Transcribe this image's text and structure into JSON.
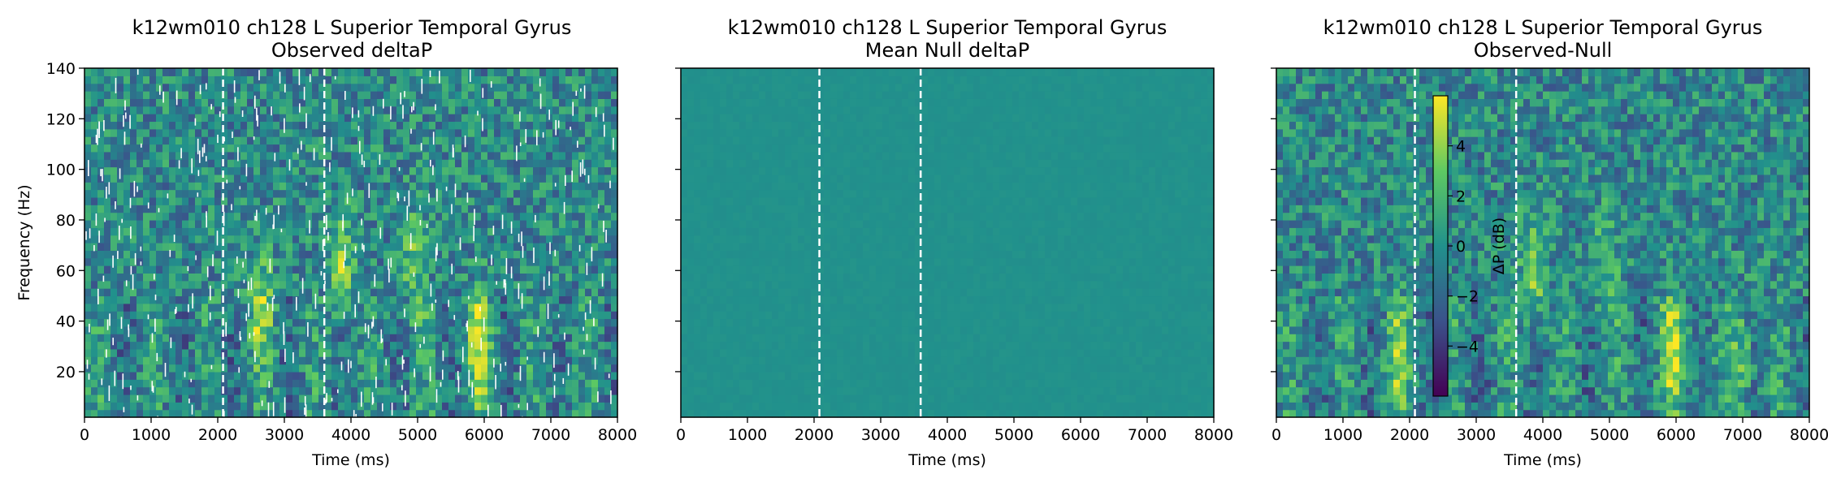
{
  "figure": {
    "colors": {
      "colormap": [
        "#440154",
        "#3b528b",
        "#21918c",
        "#5ec962",
        "#fde725"
      ],
      "marker_lines": "#ffffff",
      "axes": "#000000"
    },
    "colorbar": {
      "label": "ΔP (dB)",
      "range": [
        -6,
        6
      ],
      "ticks": [
        4,
        2,
        0,
        -2,
        -4
      ],
      "tick_labels": [
        "4",
        "2",
        "0",
        "−2",
        "−4"
      ]
    }
  },
  "chart_data": [
    {
      "type": "heatmap",
      "title": "k12wm010 ch128 L Superior Temporal Gyrus",
      "subtitle": "Observed deltaP",
      "xlabel": "Time (ms)",
      "ylabel": "Frequency (Hz)",
      "xlim": [
        0,
        8000
      ],
      "ylim": [
        2,
        140
      ],
      "xticks": [
        0,
        1000,
        2000,
        3000,
        4000,
        5000,
        6000,
        7000,
        8000
      ],
      "yticks": [
        20,
        40,
        60,
        80,
        100,
        120,
        140
      ],
      "grid": false,
      "event_lines_ms": [
        2080,
        3600
      ],
      "value_range": [
        -6,
        6
      ],
      "hotspots": [
        {
          "time_ms": 2650,
          "freq_hz": 45,
          "value": 4
        },
        {
          "time_ms": 3850,
          "freq_hz": 62,
          "value": 4
        },
        {
          "time_ms": 4950,
          "freq_hz": 63,
          "value": 3
        },
        {
          "time_ms": 5950,
          "freq_hz": 30,
          "value": 5
        }
      ]
    },
    {
      "type": "heatmap",
      "title": "k12wm010 ch128 L Superior Temporal Gyrus",
      "subtitle": "Mean Null deltaP",
      "xlabel": "Time (ms)",
      "ylabel": "",
      "xlim": [
        0,
        8000
      ],
      "ylim": [
        2,
        140
      ],
      "xticks": [
        0,
        1000,
        2000,
        3000,
        4000,
        5000,
        6000,
        7000,
        8000
      ],
      "yticks": [
        20,
        40,
        60,
        80,
        100,
        120,
        140
      ],
      "grid": false,
      "event_lines_ms": [
        2080,
        3600
      ],
      "value_range": [
        -6,
        6
      ],
      "hotspots": []
    },
    {
      "type": "heatmap",
      "title": "k12wm010 ch128 L Superior Temporal Gyrus",
      "subtitle": "Observed-Null",
      "xlabel": "Time (ms)",
      "ylabel": "",
      "xlim": [
        0,
        8000
      ],
      "ylim": [
        2,
        140
      ],
      "xticks": [
        0,
        1000,
        2000,
        3000,
        4000,
        5000,
        6000,
        7000,
        8000
      ],
      "yticks": [
        20,
        40,
        60,
        80,
        100,
        120,
        140
      ],
      "grid": false,
      "event_lines_ms": [
        2080,
        3600
      ],
      "value_range": [
        -6,
        6
      ],
      "hotspots": [
        {
          "time_ms": 1850,
          "freq_hz": 25,
          "value": 4
        },
        {
          "time_ms": 3850,
          "freq_hz": 62,
          "value": 4
        },
        {
          "time_ms": 4950,
          "freq_hz": 63,
          "value": 3
        },
        {
          "time_ms": 5950,
          "freq_hz": 28,
          "value": 5
        },
        {
          "time_ms": 7000,
          "freq_hz": 25,
          "value": 3
        }
      ]
    }
  ]
}
